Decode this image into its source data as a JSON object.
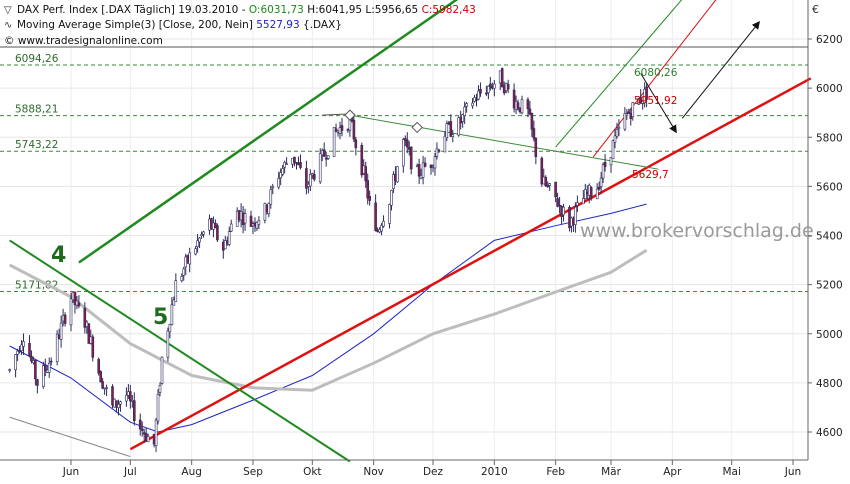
{
  "header": {
    "line1": {
      "instrument": "DAX Perf. Index [.DAX Täglich] 19.03.2010 - ",
      "open": "O:6031,73",
      "high_low": " H:6041,95 L:5956,65 ",
      "close": "C:5982,43"
    },
    "line2": {
      "indicator": "Moving Average Simple(3) [Close, 200, Nein] ",
      "value": "5527,93",
      "suffix": " {.DAX}"
    },
    "line3": "© www.tradesignalonline.com"
  },
  "currency_symbol": "€",
  "watermark": "www.brokervorschlag.de",
  "colors": {
    "up_candle": "#ffffff",
    "down_candle": "#8b1c4c",
    "candle_outline": "#2a2a5a",
    "ma_blue": "#1c24c8",
    "ma_gray": "#bdbdbd",
    "channel_green": "#1f8a1f",
    "support_red": "#e01010",
    "level_green": "#3a8a3a",
    "open_green": "#1a8a1a",
    "close_red": "#cc0000"
  },
  "chart_data": {
    "type": "candlestick",
    "title": "DAX Perf. Index [.DAX Täglich] 19.03.2010",
    "ylim": [
      4500,
      6380
    ],
    "y_ticks": [
      4600,
      4800,
      5000,
      5200,
      5400,
      5600,
      5800,
      6000,
      6200
    ],
    "x_ticks": [
      {
        "label": "Jun",
        "date": "2009-06-01"
      },
      {
        "label": "Jul",
        "date": "2009-07-01"
      },
      {
        "label": "Aug",
        "date": "2009-08-01"
      },
      {
        "label": "Sep",
        "date": "2009-09-01"
      },
      {
        "label": "Okt",
        "date": "2009-10-01"
      },
      {
        "label": "Nov",
        "date": "2009-11-01"
      },
      {
        "label": "Dez",
        "date": "2009-12-01"
      },
      {
        "label": "2010",
        "date": "2010-01-01"
      },
      {
        "label": "Feb",
        "date": "2010-02-01"
      },
      {
        "label": "Mär",
        "date": "2010-03-01"
      },
      {
        "label": "Apr",
        "date": "2010-04-01"
      },
      {
        "label": "Mai",
        "date": "2010-05-01"
      },
      {
        "label": "Jun",
        "date": "2010-06-01"
      }
    ],
    "price_path": [
      [
        "2009-05-01",
        4850
      ],
      [
        "2009-05-08",
        5000
      ],
      [
        "2009-05-15",
        4800
      ],
      [
        "2009-05-22",
        4900
      ],
      [
        "2009-06-01",
        5150
      ],
      [
        "2009-06-08",
        5050
      ],
      [
        "2009-06-15",
        4850
      ],
      [
        "2009-06-22",
        4700
      ],
      [
        "2009-06-29",
        4750
      ],
      [
        "2009-07-06",
        4620
      ],
      [
        "2009-07-13",
        4550
      ],
      [
        "2009-07-17",
        4900
      ],
      [
        "2009-07-24",
        5200
      ],
      [
        "2009-08-01",
        5330
      ],
      [
        "2009-08-10",
        5450
      ],
      [
        "2009-08-17",
        5350
      ],
      [
        "2009-08-24",
        5500
      ],
      [
        "2009-08-31",
        5450
      ],
      [
        "2009-09-07",
        5500
      ],
      [
        "2009-09-14",
        5650
      ],
      [
        "2009-09-21",
        5730
      ],
      [
        "2009-09-28",
        5600
      ],
      [
        "2009-10-05",
        5700
      ],
      [
        "2009-10-13",
        5820
      ],
      [
        "2009-10-20",
        5870
      ],
      [
        "2009-10-27",
        5650
      ],
      [
        "2009-11-02",
        5400
      ],
      [
        "2009-11-09",
        5550
      ],
      [
        "2009-11-16",
        5780
      ],
      [
        "2009-11-23",
        5650
      ],
      [
        "2009-11-30",
        5700
      ],
      [
        "2009-12-07",
        5820
      ],
      [
        "2009-12-14",
        5850
      ],
      [
        "2009-12-21",
        5950
      ],
      [
        "2009-12-28",
        6000
      ],
      [
        "2010-01-04",
        6040
      ],
      [
        "2010-01-11",
        5950
      ],
      [
        "2010-01-18",
        5900
      ],
      [
        "2010-01-25",
        5620
      ],
      [
        "2010-02-01",
        5550
      ],
      [
        "2010-02-08",
        5450
      ],
      [
        "2010-02-15",
        5550
      ],
      [
        "2010-02-22",
        5600
      ],
      [
        "2010-03-01",
        5750
      ],
      [
        "2010-03-08",
        5880
      ],
      [
        "2010-03-15",
        5950
      ],
      [
        "2010-03-19",
        5982
      ]
    ],
    "series": [
      {
        "name": "Moving Average Simple(3) [Close, 200, Nein]",
        "style": "blue",
        "points": [
          [
            "2009-05-01",
            4950
          ],
          [
            "2009-06-01",
            4820
          ],
          [
            "2009-07-01",
            4640
          ],
          [
            "2009-07-15",
            4600
          ],
          [
            "2009-08-01",
            4630
          ],
          [
            "2009-09-01",
            4730
          ],
          [
            "2009-10-01",
            4830
          ],
          [
            "2009-11-01",
            5000
          ],
          [
            "2009-12-01",
            5200
          ],
          [
            "2010-01-01",
            5380
          ],
          [
            "2010-02-01",
            5440
          ],
          [
            "2010-03-01",
            5490
          ],
          [
            "2010-03-19",
            5528
          ]
        ]
      },
      {
        "name": "",
        "style": "gray",
        "points": [
          [
            "2009-05-01",
            5280
          ],
          [
            "2009-06-01",
            5150
          ],
          [
            "2009-07-01",
            4960
          ],
          [
            "2009-08-01",
            4830
          ],
          [
            "2009-09-01",
            4780
          ],
          [
            "2009-10-01",
            4770
          ],
          [
            "2009-11-01",
            4880
          ],
          [
            "2009-12-01",
            5000
          ],
          [
            "2010-01-01",
            5080
          ],
          [
            "2010-02-01",
            5170
          ],
          [
            "2010-03-01",
            5250
          ],
          [
            "2010-03-19",
            5340
          ]
        ]
      }
    ],
    "horizontal_levels": [
      {
        "label": "6094,26",
        "value": 6094.26
      },
      {
        "label": "5888,21",
        "value": 5888.21
      },
      {
        "label": "5743,22",
        "value": 5743.22
      },
      {
        "label": "5171,82",
        "value": 5171.82
      }
    ],
    "extra_lines": [
      {
        "kind": "red_support",
        "from": [
          "2009-07-01",
          4530
        ],
        "to": [
          "2010-06-10",
          6040
        ]
      },
      {
        "kind": "green_channel_top",
        "from": [
          "2009-06-05",
          5290
        ],
        "to": [
          "2009-12-20",
          6400
        ]
      },
      {
        "kind": "green_channel_bottom",
        "from": [
          "2009-05-01",
          5380
        ],
        "to": [
          "2009-10-20",
          4480
        ]
      },
      {
        "kind": "thin_green_neckline",
        "from": [
          "2009-10-20",
          5890
        ],
        "to": [
          "2010-03-25",
          5670
        ]
      },
      {
        "kind": "thin_channel_lower",
        "from": [
          "2009-05-01",
          4660
        ],
        "to": [
          "2009-07-01",
          4500
        ]
      }
    ],
    "annotations": [
      {
        "text": "4",
        "color": "green"
      },
      {
        "text": "5",
        "color": "green"
      },
      {
        "text": "6080,26",
        "color": "green"
      },
      {
        "text": "5951,92",
        "color": "red"
      },
      {
        "text": "5629,7",
        "color": "red"
      }
    ]
  }
}
